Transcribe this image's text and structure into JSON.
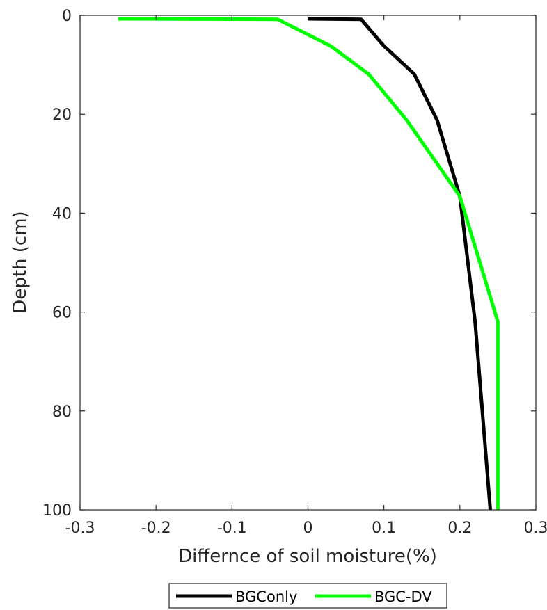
{
  "chart_data": {
    "type": "line",
    "title": "",
    "xlabel": "Differnce of soil moisture(%)",
    "ylabel": "Depth (cm)",
    "xlim": [
      -0.3,
      0.3
    ],
    "ylim": [
      0,
      100
    ],
    "y_reversed": true,
    "xticks": [
      -0.3,
      -0.2,
      -0.1,
      0,
      0.1,
      0.2,
      0.3
    ],
    "xtick_labels": [
      "-0.3",
      "-0.2",
      "-0.1",
      "0",
      "0.1",
      "0.2",
      "0.3"
    ],
    "yticks": [
      0,
      20,
      40,
      60,
      80,
      100
    ],
    "ytick_labels": [
      "0",
      "20",
      "40",
      "60",
      "80",
      "100"
    ],
    "grid": false,
    "legend_position": "bottom-center",
    "series": [
      {
        "name": "BGConly",
        "color": "#000000",
        "points": [
          [
            0.0,
            0.7
          ],
          [
            0.07,
            0.8
          ],
          [
            0.1,
            6.2
          ],
          [
            0.14,
            11.9
          ],
          [
            0.17,
            21.2
          ],
          [
            0.2,
            36.6
          ],
          [
            0.22,
            62.0
          ],
          [
            0.24,
            100.0
          ]
        ]
      },
      {
        "name": "BGC-DV",
        "color": "#00ff00",
        "points": [
          [
            -0.25,
            0.7
          ],
          [
            -0.04,
            0.8
          ],
          [
            0.03,
            6.2
          ],
          [
            0.08,
            11.9
          ],
          [
            0.13,
            21.2
          ],
          [
            0.2,
            36.6
          ],
          [
            0.25,
            62.0
          ],
          [
            0.25,
            100.0
          ]
        ]
      }
    ]
  }
}
